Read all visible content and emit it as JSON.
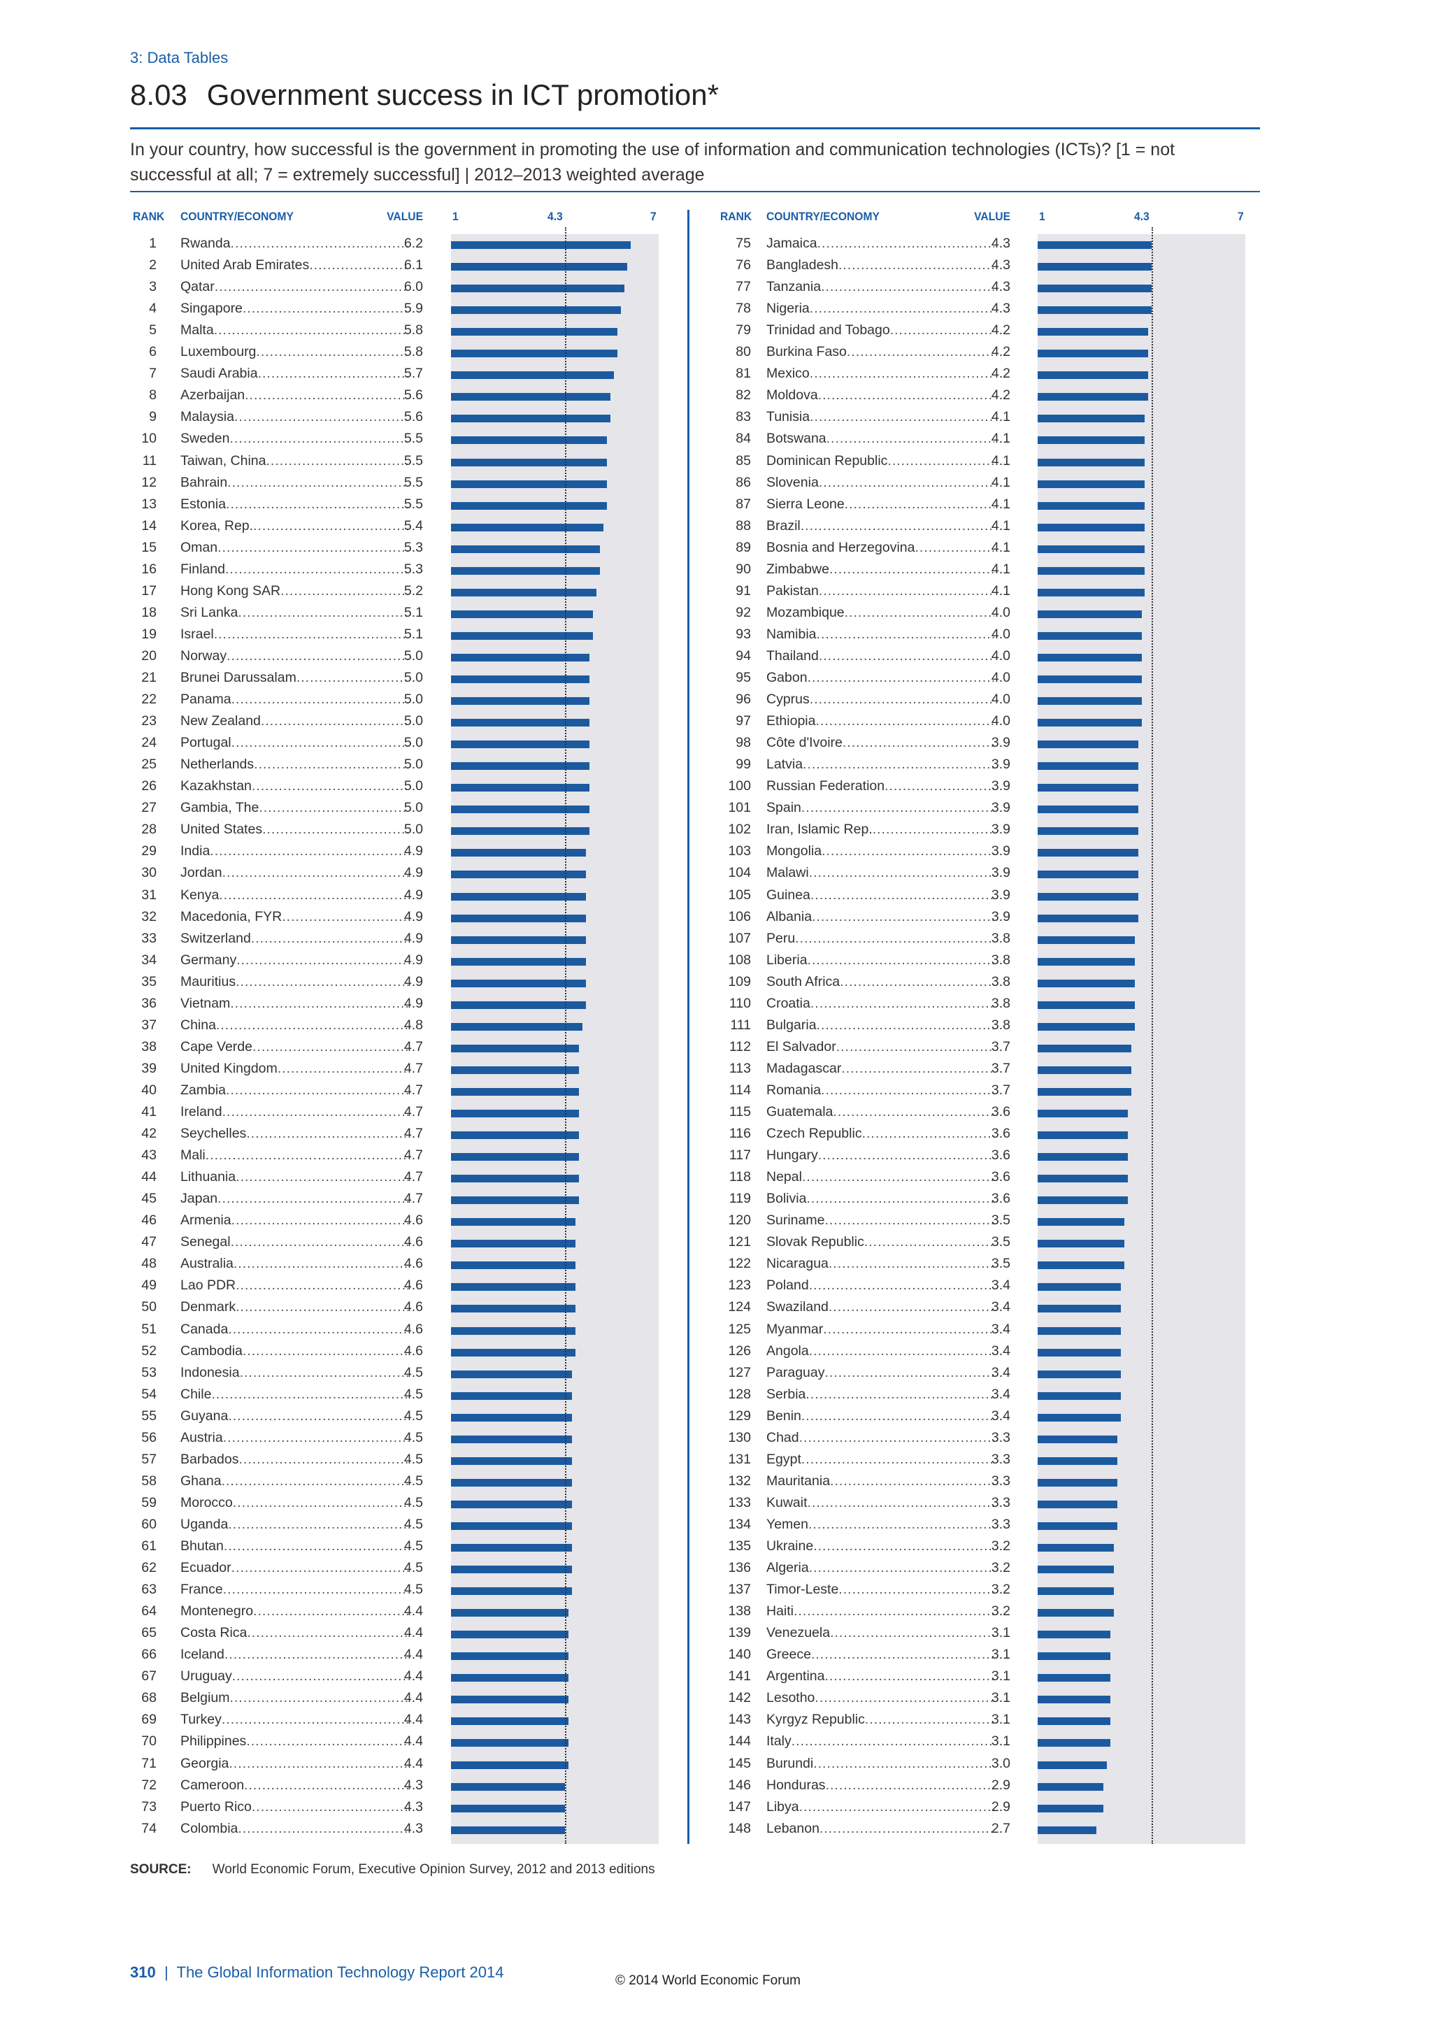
{
  "section": "3: Data Tables",
  "title_number": "8.03",
  "title_text": "Government success in ICT promotion*",
  "question": "In your country, how successful is the government in promoting the use of information and communication technologies (ICTs)? [1 = not successful at all; 7 = extremely successful]  |  2012–2013 weighted average",
  "headers": {
    "rank": "RANK",
    "country": "COUNTRY/ECONOMY",
    "value": "VALUE",
    "axis_min": "1",
    "axis_mid": "4.3",
    "axis_max": "7"
  },
  "source_label": "SOURCE:",
  "source_text": "World Economic Forum, Executive Opinion Survey, 2012 and 2013 editions",
  "footer_page": "310",
  "footer_sep": "  |  ",
  "footer_title": "The Global Information Technology Report 2014",
  "copyright": "© 2014 World Economic Forum",
  "colors": {
    "accent": "#1a5ea8",
    "bar": "#1c5aa0",
    "track": "#e5e5ea"
  },
  "chart_data": {
    "type": "bar",
    "orientation": "horizontal",
    "xlim": [
      1,
      7
    ],
    "reference_value": 4.3,
    "reference_label": "4.3",
    "grid": false,
    "rows": [
      {
        "rank": "1",
        "country": "Rwanda",
        "value": 6.2
      },
      {
        "rank": "2",
        "country": "United Arab Emirates",
        "value": 6.1
      },
      {
        "rank": "3",
        "country": "Qatar",
        "value": 6.0
      },
      {
        "rank": "4",
        "country": "Singapore",
        "value": 5.9
      },
      {
        "rank": "5",
        "country": "Malta",
        "value": 5.8
      },
      {
        "rank": "6",
        "country": "Luxembourg",
        "value": 5.8
      },
      {
        "rank": "7",
        "country": "Saudi Arabia",
        "value": 5.7
      },
      {
        "rank": "8",
        "country": "Azerbaijan",
        "value": 5.6
      },
      {
        "rank": "9",
        "country": "Malaysia",
        "value": 5.6
      },
      {
        "rank": "10",
        "country": "Sweden",
        "value": 5.5
      },
      {
        "rank": "11",
        "country": "Taiwan, China",
        "value": 5.5
      },
      {
        "rank": "12",
        "country": "Bahrain",
        "value": 5.5
      },
      {
        "rank": "13",
        "country": "Estonia",
        "value": 5.5
      },
      {
        "rank": "14",
        "country": "Korea, Rep.",
        "value": 5.4
      },
      {
        "rank": "15",
        "country": "Oman",
        "value": 5.3
      },
      {
        "rank": "16",
        "country": "Finland",
        "value": 5.3
      },
      {
        "rank": "17",
        "country": "Hong Kong SAR",
        "value": 5.2
      },
      {
        "rank": "18",
        "country": "Sri Lanka",
        "value": 5.1
      },
      {
        "rank": "19",
        "country": "Israel",
        "value": 5.1
      },
      {
        "rank": "20",
        "country": "Norway",
        "value": 5.0
      },
      {
        "rank": "21",
        "country": "Brunei Darussalam",
        "value": 5.0
      },
      {
        "rank": "22",
        "country": "Panama",
        "value": 5.0
      },
      {
        "rank": "23",
        "country": "New Zealand",
        "value": 5.0
      },
      {
        "rank": "24",
        "country": "Portugal",
        "value": 5.0
      },
      {
        "rank": "25",
        "country": "Netherlands",
        "value": 5.0
      },
      {
        "rank": "26",
        "country": "Kazakhstan",
        "value": 5.0
      },
      {
        "rank": "27",
        "country": "Gambia, The",
        "value": 5.0
      },
      {
        "rank": "28",
        "country": "United States",
        "value": 5.0
      },
      {
        "rank": "29",
        "country": "India",
        "value": 4.9
      },
      {
        "rank": "30",
        "country": "Jordan",
        "value": 4.9
      },
      {
        "rank": "31",
        "country": "Kenya",
        "value": 4.9
      },
      {
        "rank": "32",
        "country": "Macedonia, FYR",
        "value": 4.9
      },
      {
        "rank": "33",
        "country": "Switzerland",
        "value": 4.9
      },
      {
        "rank": "34",
        "country": "Germany",
        "value": 4.9
      },
      {
        "rank": "35",
        "country": "Mauritius",
        "value": 4.9
      },
      {
        "rank": "36",
        "country": "Vietnam",
        "value": 4.9
      },
      {
        "rank": "37",
        "country": "China",
        "value": 4.8
      },
      {
        "rank": "38",
        "country": "Cape Verde",
        "value": 4.7
      },
      {
        "rank": "39",
        "country": "United Kingdom",
        "value": 4.7
      },
      {
        "rank": "40",
        "country": "Zambia",
        "value": 4.7
      },
      {
        "rank": "41",
        "country": "Ireland",
        "value": 4.7
      },
      {
        "rank": "42",
        "country": "Seychelles",
        "value": 4.7
      },
      {
        "rank": "43",
        "country": "Mali",
        "value": 4.7
      },
      {
        "rank": "44",
        "country": "Lithuania",
        "value": 4.7
      },
      {
        "rank": "45",
        "country": "Japan",
        "value": 4.7
      },
      {
        "rank": "46",
        "country": "Armenia",
        "value": 4.6
      },
      {
        "rank": "47",
        "country": "Senegal",
        "value": 4.6
      },
      {
        "rank": "48",
        "country": "Australia",
        "value": 4.6
      },
      {
        "rank": "49",
        "country": "Lao PDR",
        "value": 4.6
      },
      {
        "rank": "50",
        "country": "Denmark",
        "value": 4.6
      },
      {
        "rank": "51",
        "country": "Canada",
        "value": 4.6
      },
      {
        "rank": "52",
        "country": "Cambodia",
        "value": 4.6
      },
      {
        "rank": "53",
        "country": "Indonesia",
        "value": 4.5
      },
      {
        "rank": "54",
        "country": "Chile",
        "value": 4.5
      },
      {
        "rank": "55",
        "country": "Guyana",
        "value": 4.5
      },
      {
        "rank": "56",
        "country": "Austria",
        "value": 4.5
      },
      {
        "rank": "57",
        "country": "Barbados",
        "value": 4.5
      },
      {
        "rank": "58",
        "country": "Ghana",
        "value": 4.5
      },
      {
        "rank": "59",
        "country": "Morocco",
        "value": 4.5
      },
      {
        "rank": "60",
        "country": "Uganda",
        "value": 4.5
      },
      {
        "rank": "61",
        "country": "Bhutan",
        "value": 4.5
      },
      {
        "rank": "62",
        "country": "Ecuador",
        "value": 4.5
      },
      {
        "rank": "63",
        "country": "France",
        "value": 4.5
      },
      {
        "rank": "64",
        "country": "Montenegro",
        "value": 4.4
      },
      {
        "rank": "65",
        "country": "Costa Rica",
        "value": 4.4
      },
      {
        "rank": "66",
        "country": "Iceland",
        "value": 4.4
      },
      {
        "rank": "67",
        "country": "Uruguay",
        "value": 4.4
      },
      {
        "rank": "68",
        "country": "Belgium",
        "value": 4.4
      },
      {
        "rank": "69",
        "country": "Turkey",
        "value": 4.4
      },
      {
        "rank": "70",
        "country": "Philippines",
        "value": 4.4
      },
      {
        "rank": "71",
        "country": "Georgia",
        "value": 4.4
      },
      {
        "rank": "72",
        "country": "Cameroon",
        "value": 4.3
      },
      {
        "rank": "73",
        "country": "Puerto Rico",
        "value": 4.3
      },
      {
        "rank": "74",
        "country": "Colombia",
        "value": 4.3
      },
      {
        "rank": "75",
        "country": "Jamaica",
        "value": 4.3
      },
      {
        "rank": "76",
        "country": "Bangladesh",
        "value": 4.3
      },
      {
        "rank": "77",
        "country": "Tanzania",
        "value": 4.3
      },
      {
        "rank": "78",
        "country": "Nigeria",
        "value": 4.3
      },
      {
        "rank": "79",
        "country": "Trinidad and Tobago",
        "value": 4.2
      },
      {
        "rank": "80",
        "country": "Burkina Faso",
        "value": 4.2
      },
      {
        "rank": "81",
        "country": "Mexico",
        "value": 4.2
      },
      {
        "rank": "82",
        "country": "Moldova",
        "value": 4.2
      },
      {
        "rank": "83",
        "country": "Tunisia",
        "value": 4.1
      },
      {
        "rank": "84",
        "country": "Botswana",
        "value": 4.1
      },
      {
        "rank": "85",
        "country": "Dominican Republic",
        "value": 4.1
      },
      {
        "rank": "86",
        "country": "Slovenia",
        "value": 4.1
      },
      {
        "rank": "87",
        "country": "Sierra Leone",
        "value": 4.1
      },
      {
        "rank": "88",
        "country": "Brazil",
        "value": 4.1
      },
      {
        "rank": "89",
        "country": "Bosnia and Herzegovina",
        "value": 4.1
      },
      {
        "rank": "90",
        "country": "Zimbabwe",
        "value": 4.1
      },
      {
        "rank": "91",
        "country": "Pakistan",
        "value": 4.1
      },
      {
        "rank": "92",
        "country": "Mozambique",
        "value": 4.0
      },
      {
        "rank": "93",
        "country": "Namibia",
        "value": 4.0
      },
      {
        "rank": "94",
        "country": "Thailand",
        "value": 4.0
      },
      {
        "rank": "95",
        "country": "Gabon",
        "value": 4.0
      },
      {
        "rank": "96",
        "country": "Cyprus",
        "value": 4.0
      },
      {
        "rank": "97",
        "country": "Ethiopia",
        "value": 4.0
      },
      {
        "rank": "98",
        "country": "Côte d'Ivoire",
        "value": 3.9
      },
      {
        "rank": "99",
        "country": "Latvia",
        "value": 3.9
      },
      {
        "rank": "100",
        "country": "Russian Federation",
        "value": 3.9
      },
      {
        "rank": "101",
        "country": "Spain",
        "value": 3.9
      },
      {
        "rank": "102",
        "country": "Iran, Islamic Rep.",
        "value": 3.9
      },
      {
        "rank": "103",
        "country": "Mongolia",
        "value": 3.9
      },
      {
        "rank": "104",
        "country": "Malawi",
        "value": 3.9
      },
      {
        "rank": "105",
        "country": "Guinea",
        "value": 3.9
      },
      {
        "rank": "106",
        "country": "Albania",
        "value": 3.9
      },
      {
        "rank": "107",
        "country": "Peru",
        "value": 3.8
      },
      {
        "rank": "108",
        "country": "Liberia",
        "value": 3.8
      },
      {
        "rank": "109",
        "country": "South Africa",
        "value": 3.8
      },
      {
        "rank": "110",
        "country": "Croatia",
        "value": 3.8
      },
      {
        "rank": "111",
        "country": "Bulgaria",
        "value": 3.8
      },
      {
        "rank": "112",
        "country": "El Salvador",
        "value": 3.7
      },
      {
        "rank": "113",
        "country": "Madagascar",
        "value": 3.7
      },
      {
        "rank": "114",
        "country": "Romania",
        "value": 3.7
      },
      {
        "rank": "115",
        "country": "Guatemala",
        "value": 3.6
      },
      {
        "rank": "116",
        "country": "Czech Republic",
        "value": 3.6
      },
      {
        "rank": "117",
        "country": "Hungary",
        "value": 3.6
      },
      {
        "rank": "118",
        "country": "Nepal",
        "value": 3.6
      },
      {
        "rank": "119",
        "country": "Bolivia",
        "value": 3.6
      },
      {
        "rank": "120",
        "country": "Suriname",
        "value": 3.5
      },
      {
        "rank": "121",
        "country": "Slovak Republic",
        "value": 3.5
      },
      {
        "rank": "122",
        "country": "Nicaragua",
        "value": 3.5
      },
      {
        "rank": "123",
        "country": "Poland",
        "value": 3.4
      },
      {
        "rank": "124",
        "country": "Swaziland",
        "value": 3.4
      },
      {
        "rank": "125",
        "country": "Myanmar",
        "value": 3.4
      },
      {
        "rank": "126",
        "country": "Angola",
        "value": 3.4
      },
      {
        "rank": "127",
        "country": "Paraguay",
        "value": 3.4
      },
      {
        "rank": "128",
        "country": "Serbia",
        "value": 3.4
      },
      {
        "rank": "129",
        "country": "Benin",
        "value": 3.4
      },
      {
        "rank": "130",
        "country": "Chad",
        "value": 3.3
      },
      {
        "rank": "131",
        "country": "Egypt",
        "value": 3.3
      },
      {
        "rank": "132",
        "country": "Mauritania",
        "value": 3.3
      },
      {
        "rank": "133",
        "country": "Kuwait",
        "value": 3.3
      },
      {
        "rank": "134",
        "country": "Yemen",
        "value": 3.3
      },
      {
        "rank": "135",
        "country": "Ukraine",
        "value": 3.2
      },
      {
        "rank": "136",
        "country": "Algeria",
        "value": 3.2
      },
      {
        "rank": "137",
        "country": "Timor-Leste",
        "value": 3.2
      },
      {
        "rank": "138",
        "country": "Haiti",
        "value": 3.2
      },
      {
        "rank": "139",
        "country": "Venezuela",
        "value": 3.1
      },
      {
        "rank": "140",
        "country": "Greece",
        "value": 3.1
      },
      {
        "rank": "141",
        "country": "Argentina",
        "value": 3.1
      },
      {
        "rank": "142",
        "country": "Lesotho",
        "value": 3.1
      },
      {
        "rank": "143",
        "country": "Kyrgyz Republic",
        "value": 3.1
      },
      {
        "rank": "144",
        "country": "Italy",
        "value": 3.1
      },
      {
        "rank": "145",
        "country": "Burundi",
        "value": 3.0
      },
      {
        "rank": "146",
        "country": "Honduras",
        "value": 2.9
      },
      {
        "rank": "147",
        "country": "Libya",
        "value": 2.9
      },
      {
        "rank": "148",
        "country": "Lebanon",
        "value": 2.7
      }
    ]
  }
}
